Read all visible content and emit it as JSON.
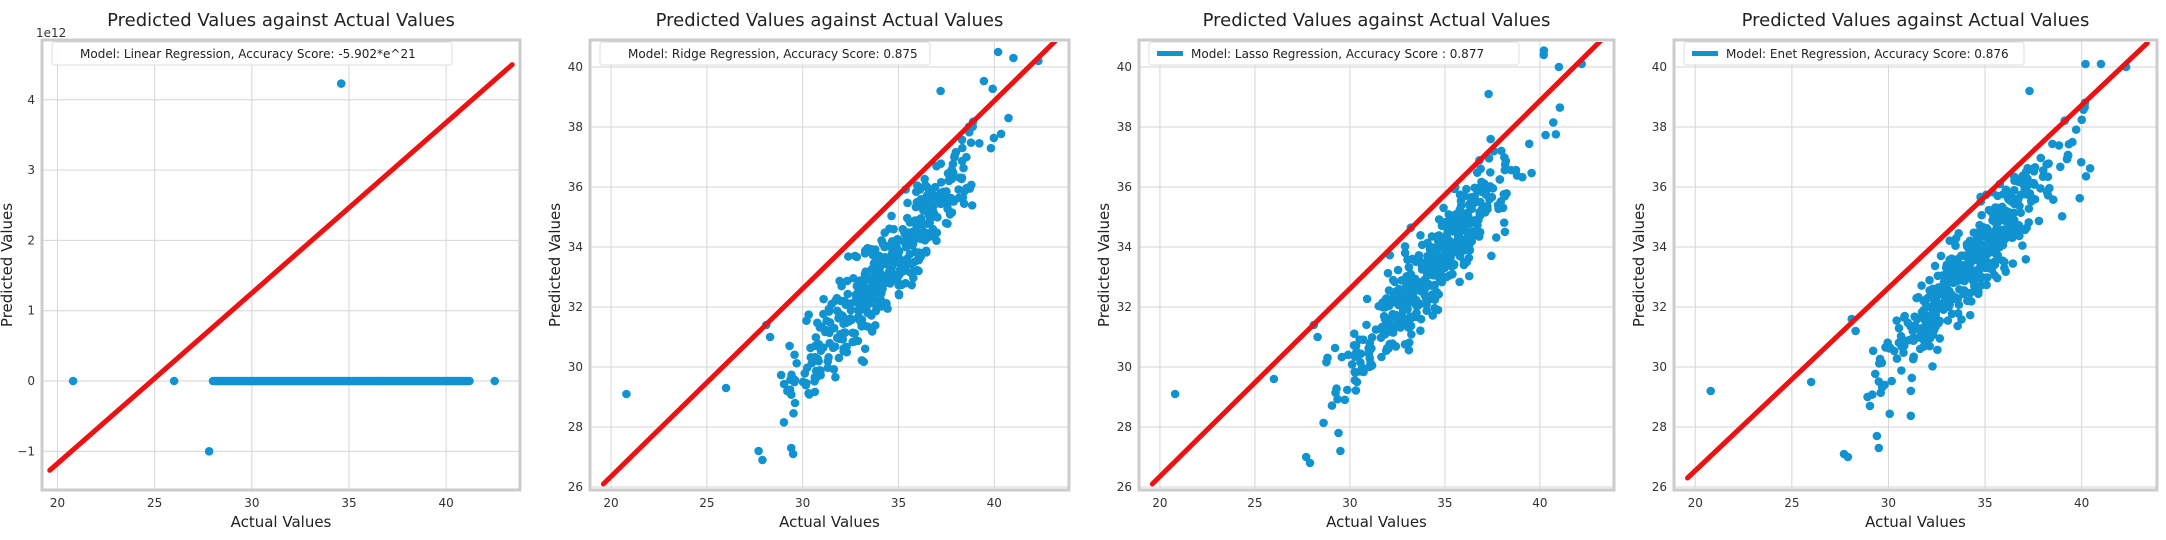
{
  "colors": {
    "scatter": "#1093d0",
    "line": "#ee1111",
    "grid": "#d6d6d6",
    "frame": "#cccccc",
    "background": "#ffffff"
  },
  "chart_data": [
    {
      "type": "scatter",
      "title": "Predicted Values against Actual Values",
      "xlabel": "Actual Values",
      "ylabel": "Predicted Values",
      "y_offset_label": "1e12",
      "xlim": [
        19.2,
        43.8
      ],
      "ylim": [
        -1.55,
        4.85
      ],
      "xticks": [
        20,
        25,
        30,
        35,
        40
      ],
      "yticks": [
        -1,
        0,
        1,
        2,
        3,
        4
      ],
      "grid": true,
      "legend": {
        "location": "top-center",
        "show_line": false,
        "label": "Model: Linear Regression, Accuracy Score: -5.902*e^21"
      },
      "fit_line": {
        "x": [
          19.6,
          43.4
        ],
        "y": [
          -1.27,
          4.5
        ]
      },
      "points": {
        "outliers": [
          [
            20.8,
            0.0
          ],
          [
            26.0,
            0.0
          ],
          [
            27.8,
            -1.0
          ],
          [
            34.6,
            4.23
          ],
          [
            42.5,
            0.0
          ]
        ],
        "band": {
          "x_from": 28.0,
          "x_to": 41.2,
          "y": 0.0,
          "count": 130
        }
      }
    },
    {
      "type": "scatter",
      "title": "Predicted Values against Actual Values",
      "xlabel": "Actual Values",
      "ylabel": "Predicted Values",
      "xlim": [
        18.9,
        43.9
      ],
      "ylim": [
        25.9,
        40.9
      ],
      "xticks": [
        20,
        25,
        30,
        35,
        40
      ],
      "yticks": [
        26,
        28,
        30,
        32,
        34,
        36,
        38,
        40
      ],
      "grid": true,
      "legend": {
        "location": "top-left",
        "show_line": false,
        "label": "Model: Ridge Regression, Accuracy Score: 0.875"
      },
      "fit_line": {
        "x": [
          19.6,
          43.4
        ],
        "y": [
          26.1,
          41.0
        ]
      },
      "points": {
        "outliers": [
          [
            20.8,
            29.1
          ],
          [
            26.0,
            29.3
          ],
          [
            27.7,
            27.2
          ],
          [
            27.9,
            26.9
          ],
          [
            29.4,
            27.3
          ],
          [
            29.5,
            27.1
          ],
          [
            29.6,
            28.8
          ],
          [
            28.1,
            31.4
          ],
          [
            28.3,
            31.0
          ],
          [
            40.2,
            40.5
          ],
          [
            41.0,
            40.3
          ],
          [
            42.3,
            40.2
          ],
          [
            37.2,
            39.2
          ],
          [
            35.8,
            33.2
          ]
        ],
        "cloud": {
          "x_range": [
            28.5,
            41.5
          ],
          "slope": 0.76,
          "intercept": 7.2,
          "spread": 0.75,
          "count": 450,
          "seed": 7
        }
      }
    },
    {
      "type": "scatter",
      "title": "Predicted Values against Actual Values",
      "xlabel": "Actual Values",
      "ylabel": "Predicted Values",
      "xlim": [
        18.9,
        43.9
      ],
      "ylim": [
        25.9,
        40.9
      ],
      "xticks": [
        20,
        25,
        30,
        35,
        40
      ],
      "yticks": [
        26,
        28,
        30,
        32,
        34,
        36,
        38,
        40
      ],
      "grid": true,
      "legend": {
        "location": "top-left",
        "show_line": true,
        "label": "Model: Lasso Regression, Accuracy Score : 0.877"
      },
      "fit_line": {
        "x": [
          19.6,
          43.4
        ],
        "y": [
          26.1,
          41.0
        ]
      },
      "points": {
        "outliers": [
          [
            20.8,
            29.1
          ],
          [
            26.0,
            29.6
          ],
          [
            27.7,
            27.0
          ],
          [
            27.9,
            26.8
          ],
          [
            29.4,
            27.8
          ],
          [
            29.5,
            27.2
          ],
          [
            28.1,
            31.4
          ],
          [
            28.3,
            31.0
          ],
          [
            40.2,
            40.4
          ],
          [
            41.0,
            40.0
          ],
          [
            42.2,
            40.1
          ],
          [
            37.3,
            39.1
          ],
          [
            36.0,
            33.4
          ]
        ],
        "cloud": {
          "x_range": [
            28.5,
            41.5
          ],
          "slope": 0.77,
          "intercept": 6.9,
          "spread": 0.72,
          "count": 450,
          "seed": 11
        }
      }
    },
    {
      "type": "scatter",
      "title": "Predicted Values against Actual Values",
      "xlabel": "Actual Values",
      "ylabel": "Predicted Values",
      "xlim": [
        18.9,
        43.9
      ],
      "ylim": [
        25.9,
        40.9
      ],
      "xticks": [
        20,
        25,
        30,
        35,
        40
      ],
      "yticks": [
        26,
        28,
        30,
        32,
        34,
        36,
        38,
        40
      ],
      "grid": true,
      "legend": {
        "location": "top-left",
        "show_line": true,
        "label": "Model: Enet Regression, Accuracy Score: 0.876"
      },
      "fit_line": {
        "x": [
          19.6,
          43.4
        ],
        "y": [
          26.3,
          40.8
        ]
      },
      "points": {
        "outliers": [
          [
            20.8,
            29.2
          ],
          [
            26.0,
            29.5
          ],
          [
            27.7,
            27.1
          ],
          [
            27.9,
            27.0
          ],
          [
            29.4,
            27.7
          ],
          [
            29.5,
            27.3
          ],
          [
            28.1,
            31.6
          ],
          [
            28.3,
            31.2
          ],
          [
            40.2,
            40.1
          ],
          [
            41.0,
            40.1
          ],
          [
            42.3,
            40.0
          ],
          [
            37.3,
            39.2
          ],
          [
            36.0,
            33.5
          ]
        ],
        "cloud": {
          "x_range": [
            28.5,
            41.5
          ],
          "slope": 0.77,
          "intercept": 7.0,
          "spread": 0.72,
          "count": 450,
          "seed": 23
        }
      }
    }
  ]
}
